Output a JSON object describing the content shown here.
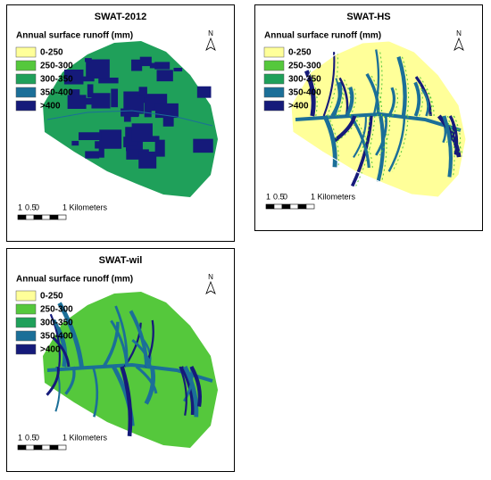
{
  "panels": [
    {
      "title": "SWAT-2012",
      "legend_title": "Annual surface runoff (mm)",
      "legend": [
        {
          "label": "0-250",
          "color": "#ffff99"
        },
        {
          "label": "250-300",
          "color": "#55c83c"
        },
        {
          "label": "300-350",
          "color": "#1fa05a"
        },
        {
          "label": "350-400",
          "color": "#1b6f98"
        },
        {
          "label": ">400",
          "color": "#151a7a"
        }
      ],
      "north": "N",
      "scale": [
        "1",
        "0.5",
        "0",
        "1 Kilometers"
      ]
    },
    {
      "title": "SWAT-HS",
      "legend_title": "Annual surface runoff (mm)",
      "legend": [
        {
          "label": "0-250",
          "color": "#ffff99"
        },
        {
          "label": "250-300",
          "color": "#55c83c"
        },
        {
          "label": "300-350",
          "color": "#1fa05a"
        },
        {
          "label": "350-400",
          "color": "#1b6f98"
        },
        {
          "label": ">400",
          "color": "#151a7a"
        }
      ],
      "north": "N",
      "scale": [
        "1",
        "0.5",
        "0",
        "1 Kilometers"
      ]
    },
    {
      "title": "SWAT-wil",
      "legend_title": "Annual surface runoff (mm)",
      "legend": [
        {
          "label": "0-250",
          "color": "#ffff99"
        },
        {
          "label": "250-300",
          "color": "#55c83c"
        },
        {
          "label": "300-350",
          "color": "#1fa05a"
        },
        {
          "label": "350-400",
          "color": "#1b6f98"
        },
        {
          "label": ">400",
          "color": "#151a7a"
        }
      ],
      "north": "N",
      "scale": [
        "1",
        "0.5",
        "0",
        "1 Kilometers"
      ]
    }
  ]
}
